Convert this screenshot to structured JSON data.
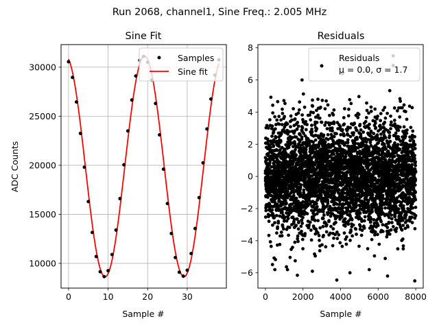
{
  "suptitle": "Run 2068, channel1, Sine Freq.: 2.005 MHz",
  "chart_data": [
    {
      "type": "line",
      "title": "Sine Fit",
      "xlabel": "Sample #",
      "ylabel": "ADC Counts",
      "xlim": [
        -1.9,
        39.9
      ],
      "ylim": [
        7480,
        32300
      ],
      "xticks": [
        0,
        10,
        20,
        30
      ],
      "yticks": [
        10000,
        15000,
        20000,
        25000,
        30000
      ],
      "grid": true,
      "legend_position": "top-right",
      "legend": [
        "Samples",
        "Sine fit"
      ],
      "series": [
        {
          "name": "Samples",
          "style": "points",
          "color": "#000000",
          "x": [
            0,
            1,
            2,
            3,
            4,
            5,
            6,
            7,
            8,
            9,
            10,
            11,
            12,
            13,
            14,
            15,
            16,
            17,
            18,
            19,
            20,
            21,
            22,
            23,
            24,
            25,
            26,
            27,
            28,
            29,
            30,
            31,
            32,
            33,
            34,
            35,
            36,
            37,
            38
          ],
          "y": [
            30550,
            28950,
            26450,
            23250,
            19800,
            16300,
            13150,
            10700,
            9150,
            8650,
            9250,
            10900,
            13400,
            16600,
            20050,
            23500,
            26650,
            29100,
            30700,
            31100,
            30500,
            28700,
            26300,
            23100,
            19600,
            16100,
            13050,
            10600,
            9100,
            8700,
            9300,
            11000,
            13550,
            16700,
            20250,
            23700,
            26750,
            29200,
            30750
          ]
        },
        {
          "name": "Sine fit",
          "style": "line",
          "color": "#ff0000",
          "model": "sine",
          "amplitude": 11250,
          "offset": 19880,
          "period_samples": 19.95,
          "peak_at_sample": 19.2,
          "x_range": [
            0,
            38
          ]
        }
      ]
    },
    {
      "type": "scatter",
      "title": "Residuals",
      "xlabel": "Sample #",
      "ylim": [
        -6.95,
        8.2
      ],
      "xlim": [
        -399,
        8399
      ],
      "xticks": [
        0,
        2000,
        4000,
        6000,
        8000
      ],
      "yticks": [
        -6,
        -4,
        -2,
        0,
        2,
        4,
        6,
        8
      ],
      "grid": false,
      "legend_position": "top-right",
      "legend": [
        "Residuals"
      ],
      "legend_stats": "μ = 0.0, σ = 1.7",
      "series": [
        {
          "name": "Residuals",
          "color": "#000000",
          "n_points": 8000,
          "mean": 0.0,
          "std": 1.7,
          "x_range": [
            0,
            7999
          ],
          "outliers": [
            {
              "x": 6800,
              "y": 7.5
            },
            {
              "x": 1950,
              "y": 6.0
            },
            {
              "x": 4100,
              "y": 6.4
            },
            {
              "x": 5400,
              "y": 6.6
            },
            {
              "x": 3800,
              "y": -6.45
            },
            {
              "x": 1700,
              "y": -6.15
            },
            {
              "x": 7950,
              "y": -6.5
            },
            {
              "x": 6500,
              "y": -6.2
            },
            {
              "x": 2500,
              "y": -5.9
            },
            {
              "x": 4500,
              "y": -6.0
            },
            {
              "x": 6800,
              "y": 6.9
            }
          ]
        }
      ]
    }
  ]
}
